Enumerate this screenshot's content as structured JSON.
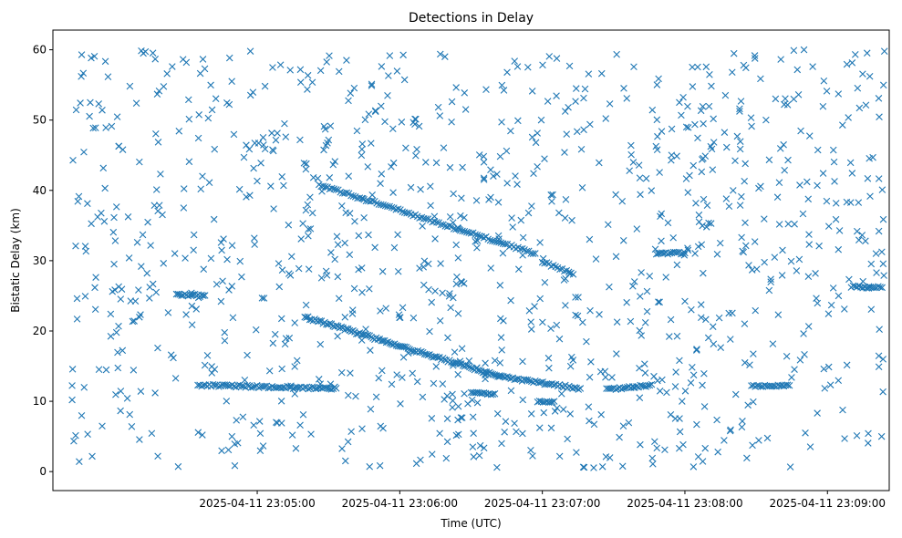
{
  "chart_data": {
    "type": "scatter",
    "title": "Detections in Delay",
    "xlabel": "Time (UTC)",
    "ylabel": "Bistatic Delay (km)",
    "marker": "x",
    "series_color": "#1f77b4",
    "xlim_seconds_after_2025-04-11_23:04:00": [
      -26,
      326
    ],
    "ylim": [
      -2.7,
      62.8
    ],
    "x_ticks": [
      {
        "value": 60,
        "label": "2025-04-11 23:05:00"
      },
      {
        "value": 120,
        "label": "2025-04-11 23:06:00"
      },
      {
        "value": 180,
        "label": "2025-04-11 23:07:00"
      },
      {
        "value": 240,
        "label": "2025-04-11 23:08:00"
      },
      {
        "value": 300,
        "label": "2025-04-11 23:09:00"
      }
    ],
    "y_ticks": [
      {
        "value": 0,
        "label": "0"
      },
      {
        "value": 10,
        "label": "10"
      },
      {
        "value": 20,
        "label": "20"
      },
      {
        "value": 30,
        "label": "30"
      },
      {
        "value": 40,
        "label": "40"
      },
      {
        "value": 50,
        "label": "50"
      },
      {
        "value": 60,
        "label": "60"
      }
    ],
    "tracks": [
      {
        "name": "track-upper",
        "x_start": 86,
        "x_end": 177,
        "y_start": 40.8,
        "y_end": 31.0,
        "step": 0.9
      },
      {
        "name": "track-upper-tail",
        "x_start": 180,
        "x_end": 193,
        "y_start": 29.8,
        "y_end": 28.2,
        "step": 0.9
      },
      {
        "name": "track-lower",
        "x_start": 80,
        "x_end": 162,
        "y_start": 22.0,
        "y_end": 13.5,
        "step": 0.7
      },
      {
        "name": "track-lower-tail",
        "x_start": 162,
        "x_end": 196,
        "y_start": 13.5,
        "y_end": 11.8,
        "step": 0.8
      },
      {
        "name": "track-12km-a",
        "x_start": 35,
        "x_end": 92,
        "y_start": 12.3,
        "y_end": 11.8,
        "step": 0.8
      },
      {
        "name": "track-12km-b",
        "x_start": 207,
        "x_end": 226,
        "y_start": 11.7,
        "y_end": 12.3,
        "step": 0.8
      },
      {
        "name": "track-12km-c",
        "x_start": 268,
        "x_end": 284,
        "y_start": 12.2,
        "y_end": 12.2,
        "step": 0.8
      },
      {
        "name": "track-25km",
        "x_start": 26,
        "x_end": 38,
        "y_start": 25.2,
        "y_end": 25.0,
        "step": 0.7
      },
      {
        "name": "track-26km",
        "x_start": 310,
        "x_end": 323,
        "y_start": 26.3,
        "y_end": 26.2,
        "step": 0.8
      },
      {
        "name": "track-31km",
        "x_start": 228,
        "x_end": 240,
        "y_start": 31.1,
        "y_end": 31.1,
        "step": 0.8
      },
      {
        "name": "track-11km",
        "x_start": 150,
        "x_end": 160,
        "y_start": 11.1,
        "y_end": 11.1,
        "step": 0.8
      },
      {
        "name": "track-10km",
        "x_start": 178,
        "x_end": 185,
        "y_start": 10.0,
        "y_end": 10.0,
        "step": 0.8
      }
    ],
    "background_clutter": {
      "count": 1050,
      "x_range": [
        -18,
        324
      ],
      "y_range": [
        0.5,
        60
      ],
      "seed": 20250411
    }
  }
}
